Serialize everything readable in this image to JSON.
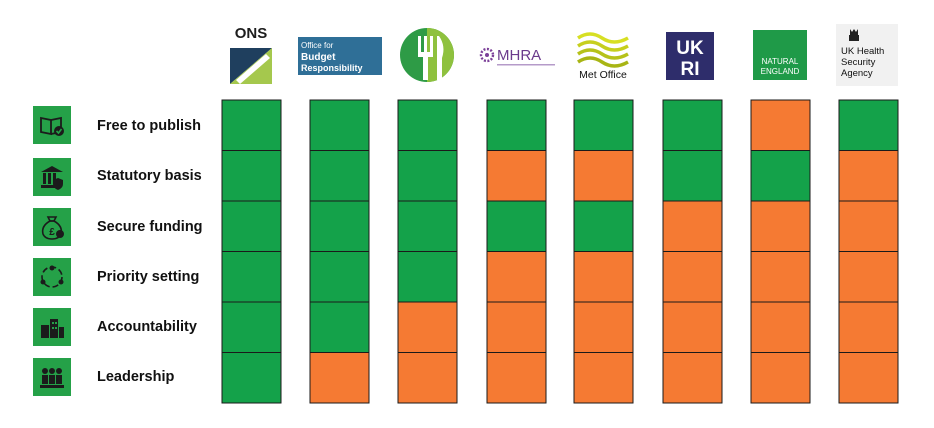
{
  "colors": {
    "green": "#14a24a",
    "orange": "#f57a33",
    "icon_green": "#25a148"
  },
  "status_legend": [
    "yes",
    "no"
  ],
  "organisations": [
    {
      "name": "ONS",
      "logo_text": "ONS",
      "logo_icon": "ons-logo"
    },
    {
      "name": "Office for Budget Responsibility",
      "logo_text": [
        "Office for",
        "Budget",
        "Responsibility"
      ],
      "logo_icon": "obr-logo"
    },
    {
      "name": "Food Standards Agency",
      "logo_text": "",
      "logo_icon": "fork-knife-logo"
    },
    {
      "name": "MHRA",
      "logo_text": "MHRA",
      "logo_icon": "mhra-logo"
    },
    {
      "name": "Met Office",
      "logo_text": "Met Office",
      "logo_icon": "met-office-logo"
    },
    {
      "name": "UKRI",
      "logo_text": [
        "UK",
        "RI"
      ],
      "logo_icon": "ukri-logo"
    },
    {
      "name": "Natural England",
      "logo_text": [
        "NATURAL",
        "ENGLAND"
      ],
      "logo_icon": "natural-england-logo"
    },
    {
      "name": "UK Health Security Agency",
      "logo_text": [
        "UK Health",
        "Security",
        "Agency"
      ],
      "logo_icon": "ukhsa-logo"
    }
  ],
  "criteria": [
    {
      "label": "Free to publish",
      "icon": "book-check-icon"
    },
    {
      "label": "Statutory basis",
      "icon": "courthouse-icon"
    },
    {
      "label": "Secure funding",
      "icon": "money-bag-icon"
    },
    {
      "label": "Priority setting",
      "icon": "people-cycle-icon"
    },
    {
      "label": "Accountability",
      "icon": "buildings-icon"
    },
    {
      "label": "Leadership",
      "icon": "people-icon"
    }
  ],
  "chart_data": {
    "type": "heatmap",
    "rows": [
      "Free to publish",
      "Statutory basis",
      "Secure funding",
      "Priority setting",
      "Accountability",
      "Leadership"
    ],
    "columns": [
      "ONS",
      "Office for Budget Responsibility",
      "Food Standards Agency",
      "MHRA",
      "Met Office",
      "UKRI",
      "Natural England",
      "UK Health Security Agency"
    ],
    "values": [
      [
        "yes",
        "yes",
        "yes",
        "yes",
        "yes",
        "yes",
        "no",
        "yes"
      ],
      [
        "yes",
        "yes",
        "yes",
        "no",
        "no",
        "yes",
        "yes",
        "no"
      ],
      [
        "yes",
        "yes",
        "yes",
        "yes",
        "yes",
        "no",
        "no",
        "no"
      ],
      [
        "yes",
        "yes",
        "yes",
        "no",
        "no",
        "no",
        "no",
        "no"
      ],
      [
        "yes",
        "yes",
        "no",
        "no",
        "no",
        "no",
        "no",
        "no"
      ],
      [
        "yes",
        "no",
        "no",
        "no",
        "no",
        "no",
        "no",
        "no"
      ]
    ]
  }
}
